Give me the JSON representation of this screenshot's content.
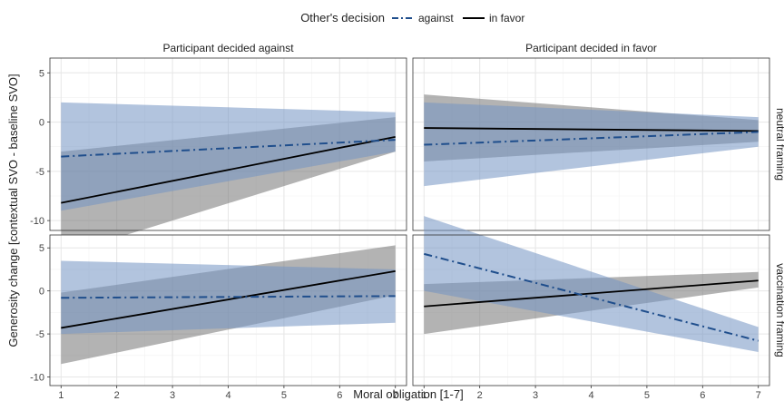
{
  "legend": {
    "title": "Other's decision",
    "items": [
      {
        "label": "against",
        "color": "#1f4e8c",
        "dash": "dashdot"
      },
      {
        "label": "in favor",
        "color": "#000000",
        "dash": "solid"
      }
    ],
    "placement": "top-center"
  },
  "chart_data": {
    "type": "line",
    "facet_columns": [
      "Participant decided against",
      "Participant decided in favor"
    ],
    "facet_rows": [
      "neutral framing",
      "vaccination framing"
    ],
    "xlabel": "Moral obligation [1-7]",
    "ylabel": "Generosity change [contextual SVO - baseline SVO]",
    "xlim": [
      0.8,
      7.2
    ],
    "ylim": [
      -11,
      6.5
    ],
    "x_ticks": [
      1,
      2,
      3,
      4,
      5,
      6,
      7
    ],
    "y_ticks": [
      5,
      0,
      -5,
      -10
    ],
    "grid": true,
    "band_colors": {
      "against": "#7393c3",
      "in favor": "#757575"
    },
    "panels": [
      {
        "column": "Participant decided against",
        "row": "neutral framing",
        "series": [
          {
            "name": "against",
            "x": [
              1,
              7
            ],
            "y": [
              -3.5,
              -1.8
            ],
            "lower": [
              -9.0,
              -3.0
            ],
            "upper": [
              2.0,
              1.0
            ]
          },
          {
            "name": "in favor",
            "x": [
              1,
              7
            ],
            "y": [
              -8.2,
              -1.5
            ],
            "lower": [
              -13.5,
              -3.0
            ],
            "upper": [
              -3.0,
              0.5
            ]
          }
        ]
      },
      {
        "column": "Participant decided in favor",
        "row": "neutral framing",
        "series": [
          {
            "name": "against",
            "x": [
              1,
              7
            ],
            "y": [
              -2.3,
              -1.0
            ],
            "lower": [
              -6.5,
              -2.5
            ],
            "upper": [
              2.0,
              0.5
            ]
          },
          {
            "name": "in favor",
            "x": [
              1,
              7
            ],
            "y": [
              -0.6,
              -0.9
            ],
            "lower": [
              -4.0,
              -2.0
            ],
            "upper": [
              2.8,
              0.2
            ]
          }
        ]
      },
      {
        "column": "Participant decided against",
        "row": "vaccination framing",
        "series": [
          {
            "name": "against",
            "x": [
              1,
              7
            ],
            "y": [
              -0.8,
              -0.6
            ],
            "lower": [
              -5.0,
              -3.7
            ],
            "upper": [
              3.5,
              2.5
            ]
          },
          {
            "name": "in favor",
            "x": [
              1,
              7
            ],
            "y": [
              -4.3,
              2.3
            ],
            "lower": [
              -8.5,
              -0.5
            ],
            "upper": [
              -0.2,
              5.3
            ]
          }
        ]
      },
      {
        "column": "Participant decided in favor",
        "row": "vaccination framing",
        "series": [
          {
            "name": "against",
            "x": [
              1,
              7
            ],
            "y": [
              4.3,
              -5.8
            ],
            "lower": [
              0.0,
              -7.1
            ],
            "upper": [
              8.7,
              -4.2
            ]
          },
          {
            "name": "in favor",
            "x": [
              1,
              7
            ],
            "y": [
              -1.8,
              1.2
            ],
            "lower": [
              -5.0,
              0.4
            ],
            "upper": [
              0.8,
              2.2
            ]
          }
        ]
      }
    ]
  }
}
